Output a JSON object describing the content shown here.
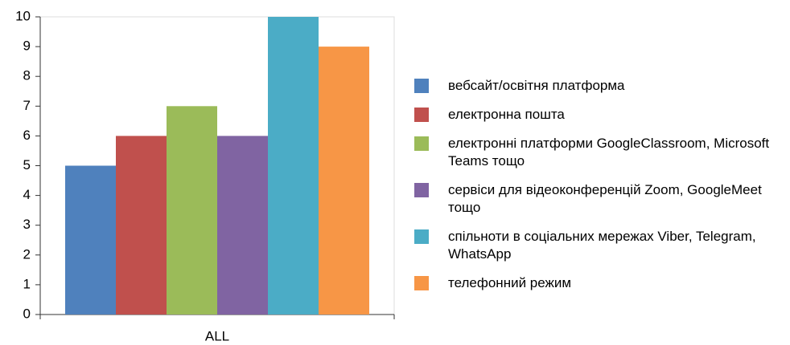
{
  "chart_data": {
    "type": "bar",
    "categories": [
      "ALL"
    ],
    "series": [
      {
        "name": "вебсайт/освітня платформа",
        "color": "#4f81bd",
        "values": [
          5
        ]
      },
      {
        "name": "електронна пошта",
        "color": "#c0504d",
        "values": [
          6
        ]
      },
      {
        "name": "електронні платформи GoogleClassroom, Microsoft Teams тощо",
        "color": "#9bbb59",
        "values": [
          7
        ]
      },
      {
        "name": "сервіси для відеоконференцій Zoom, GoogleMeet тощо",
        "color": "#8064a2",
        "values": [
          6
        ]
      },
      {
        "name": "спільноти в соціальних мережах Viber, Telegram, WhatsApp",
        "color": "#4bacc6",
        "values": [
          10
        ]
      },
      {
        "name": "телефонний режим",
        "color": "#f79646",
        "values": [
          9
        ]
      }
    ],
    "ylim": [
      0,
      10
    ],
    "yticks": [
      0,
      1,
      2,
      3,
      4,
      5,
      6,
      7,
      8,
      9,
      10
    ],
    "legend": "right"
  }
}
